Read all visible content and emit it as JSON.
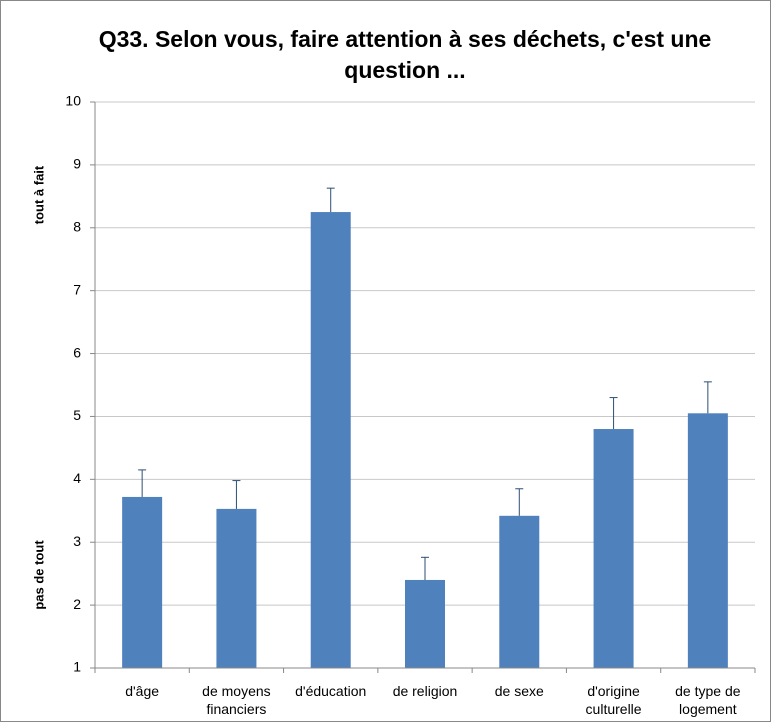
{
  "chart_data": {
    "type": "bar",
    "title": "Q33. Selon vous, faire attention à ses déchets, c'est une question ...",
    "annotations": [
      "tout à fait",
      "pas de tout"
    ],
    "categories": [
      "d'âge",
      "de moyens financiers",
      "d'éducation",
      "de religion",
      "de sexe",
      "d'origine culturelle",
      "de type de logement"
    ],
    "values": [
      3.72,
      3.53,
      8.25,
      2.4,
      3.42,
      4.8,
      5.05
    ],
    "errors": [
      0.43,
      0.45,
      0.38,
      0.36,
      0.43,
      0.5,
      0.5
    ],
    "color": "#4f81bd",
    "ylim": [
      1,
      10
    ],
    "yticks": [
      1,
      2,
      3,
      4,
      5,
      6,
      7,
      8,
      9,
      10
    ],
    "grid": true
  }
}
